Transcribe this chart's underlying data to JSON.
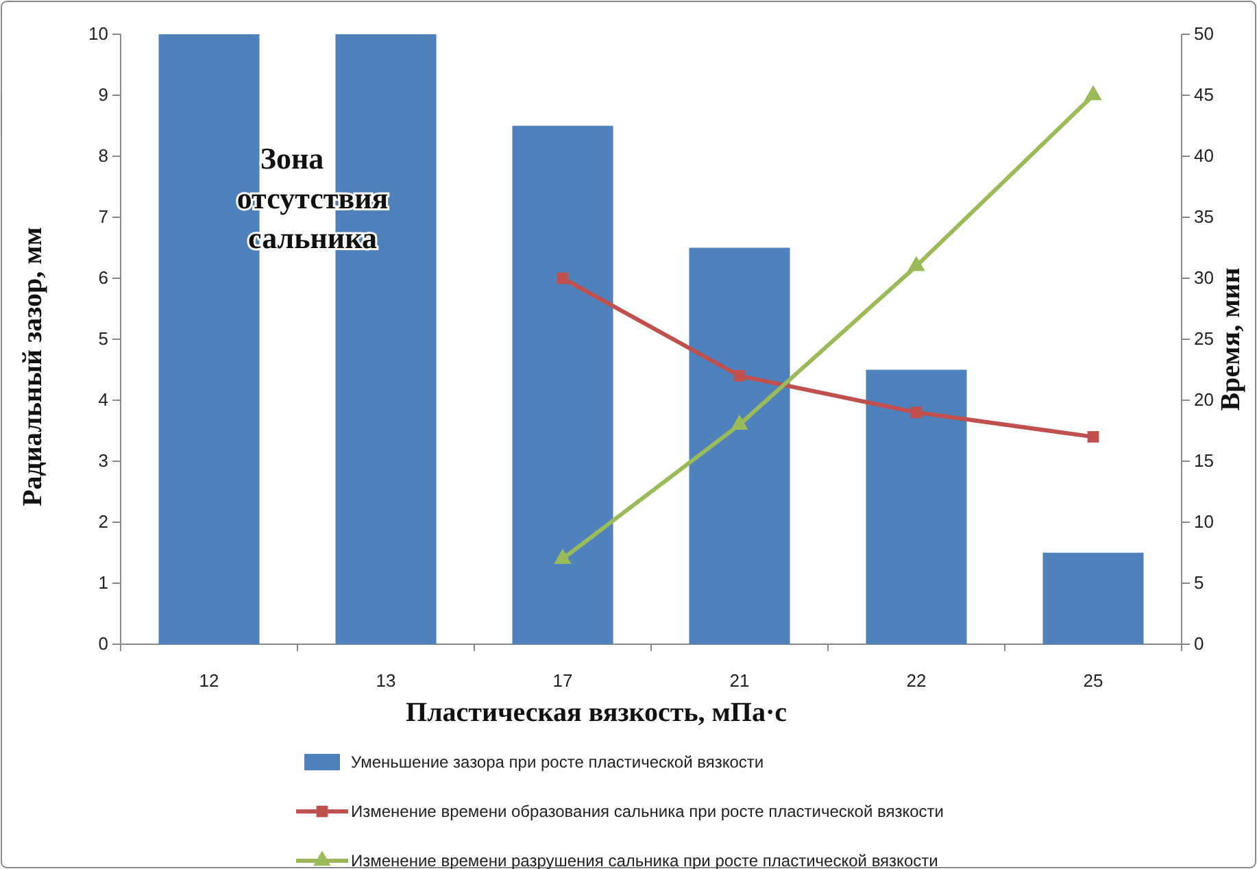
{
  "chart_data": {
    "type": "bar",
    "xlabel": "Пластическая вязкость, мПа·с",
    "ylabel": "Радиальный зазор, мм",
    "y2label": "Время, мин",
    "categories": [
      "12",
      "13",
      "17",
      "21",
      "22",
      "25"
    ],
    "series": [
      {
        "name": "Уменьшение зазора при росте пластической вязкости",
        "color": "#4f81bd",
        "values": [
          10,
          10,
          8.5,
          6.5,
          4.5,
          1.5
        ]
      },
      {
        "type": "line",
        "axis": "y2",
        "marker": "square",
        "name": "Изменение времени образования сальника при росте пластической вязкости",
        "color": "#c0504d",
        "values": [
          null,
          null,
          30,
          22,
          19,
          17
        ]
      },
      {
        "type": "line",
        "axis": "y2",
        "marker": "triangle",
        "name": "Изменение времени разрушения сальника при росте пластической вязкости",
        "color": "#9bbb59",
        "values": [
          null,
          null,
          7,
          18,
          31,
          45
        ]
      }
    ],
    "ylim": [
      0,
      10
    ],
    "yticks": [
      0,
      1,
      2,
      3,
      4,
      5,
      6,
      7,
      8,
      9,
      10
    ],
    "y2lim": [
      0,
      50
    ],
    "y2ticks": [
      0,
      5,
      10,
      15,
      20,
      25,
      30,
      35,
      40,
      45,
      50
    ],
    "annotations": [
      "Зона отсутствия сальника"
    ],
    "legend": "bottom",
    "grid": false
  }
}
